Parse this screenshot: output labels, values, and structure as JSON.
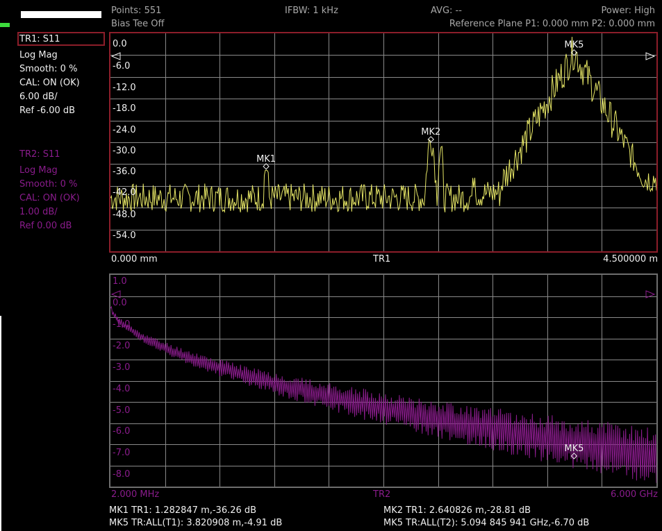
{
  "header": {
    "points": "Points: 551",
    "ifbw": "IFBW: 1 kHz",
    "avg": "AVG: --",
    "power": "Power: High",
    "bias_tee": "Bias Tee Off",
    "ref_plane": "Reference Plane P1: 0.000 mm P2: 0.000 mm"
  },
  "tr1_info": {
    "name": "TR1: S11",
    "format": "Log Mag",
    "smooth": "Smooth: 0 %",
    "cal": "CAL: ON (OK)",
    "scale": "6.00 dB/",
    "ref": "Ref -6.00 dB"
  },
  "tr2_info": {
    "name": "TR2: S11",
    "format": "Log Mag",
    "smooth": "Smooth: 0 %",
    "cal": "CAL: ON (OK)",
    "scale": "1.00 dB/",
    "ref": "Ref 0.00 dB"
  },
  "plot1": {
    "y_ticks": [
      "0.0",
      "-6.0",
      "-12.0",
      "-18.0",
      "-24.0",
      "-30.0",
      "-36.0",
      "-42.0",
      "-48.0",
      "-54.0"
    ],
    "x_start": "0.000 mm",
    "x_mid": "TR1",
    "x_end": "4.500000 m",
    "markers": [
      "MK1",
      "MK2",
      "MK5"
    ]
  },
  "plot2": {
    "y_ticks": [
      "1.0",
      "0.0",
      "-1.0",
      "-2.0",
      "-3.0",
      "-4.0",
      "-5.0",
      "-6.0",
      "-7.0",
      "-8.0"
    ],
    "x_start": "2.000 MHz",
    "x_mid": "TR2",
    "x_end": "6.000 GHz",
    "markers": [
      "MK5"
    ]
  },
  "marker_readouts": {
    "mk1": "MK1 TR1:  1.282847 m,-36.26 dB",
    "mk2": "MK2 TR1:  2.640826 m,-28.81 dB",
    "mk5_t1": "MK5 TR:ALL(T1):  3.820908 m,-4.91 dB",
    "mk5_t2": "MK5 TR:ALL(T2):  5.094 845 941 GHz,-6.70 dB"
  },
  "chart_data": [
    {
      "type": "line",
      "trace": "TR1",
      "ylabel": "",
      "ylim": [
        -54,
        0
      ],
      "x_range": [
        0,
        4.5
      ],
      "x_unit": "m",
      "markers": [
        {
          "name": "MK1",
          "x": 1.282847,
          "y": -36.26
        },
        {
          "name": "MK2",
          "x": 2.640826,
          "y": -28.81
        },
        {
          "name": "MK5",
          "x": 3.820908,
          "y": -4.91
        }
      ]
    },
    {
      "type": "line",
      "trace": "TR2",
      "ylim": [
        -8,
        1
      ],
      "x_range": [
        0.002,
        6.0
      ],
      "x_unit": "GHz",
      "markers": [
        {
          "name": "MK5",
          "x": 5.094845941,
          "y": -6.7
        }
      ]
    }
  ],
  "colors": {
    "trace1": "#e6e666",
    "trace2": "#8a1c8c",
    "plot1_border": "#8c1e2a",
    "grid": "#8a8a8a"
  }
}
